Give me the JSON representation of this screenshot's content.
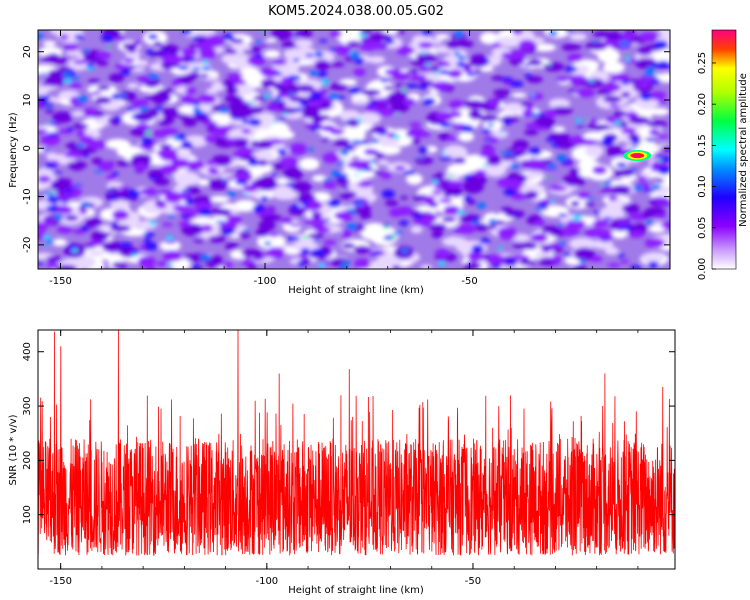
{
  "title": "KOM5.2024.038.00.05.G02",
  "chart_data": [
    {
      "type": "heatmap",
      "xlabel": "Height of straight line (km)",
      "ylabel": "Frequency (Hz)",
      "xlim": [
        -155.5,
        -1
      ],
      "ylim": [
        -25,
        24.5
      ],
      "xticks": [
        -150,
        -100,
        -50
      ],
      "yticks": [
        -20,
        -10,
        0,
        10,
        20
      ],
      "colorbar": {
        "label": "Normalized spectral amplitude",
        "range": [
          0,
          0.29
        ],
        "ticks": [
          0.0,
          0.05,
          0.1,
          0.15,
          0.2,
          0.25
        ],
        "tick_labels": [
          "0.00",
          "0.05",
          "0.10",
          "0.15",
          "0.20",
          "0.25"
        ],
        "colormap": [
          "#ffffff",
          "#8a00ff",
          "#0000ff",
          "#00ffff",
          "#00ff00",
          "#ffff00",
          "#ff0000",
          "#ff0080"
        ]
      },
      "peak": {
        "x": -9,
        "y": -1.5,
        "amplitude": 0.28
      }
    },
    {
      "type": "line",
      "xlabel": "Height of straight line (km)",
      "ylabel": "SNR (10 * v/v)",
      "xlim": [
        -155.5,
        -1
      ],
      "ylim": [
        0,
        440
      ],
      "xticks": [
        -150,
        -100,
        -50
      ],
      "yticks": [
        100,
        200,
        300,
        400
      ],
      "series_color": "#ff0000",
      "baseline_range": [
        25,
        240
      ],
      "spikes": [
        {
          "x": -151.5,
          "y": 437
        },
        {
          "x": -150,
          "y": 410
        },
        {
          "x": -136,
          "y": 440
        },
        {
          "x": -107,
          "y": 445
        },
        {
          "x": -97,
          "y": 360
        },
        {
          "x": -80,
          "y": 368
        },
        {
          "x": -18,
          "y": 360
        },
        {
          "x": -4,
          "y": 335
        }
      ]
    }
  ]
}
